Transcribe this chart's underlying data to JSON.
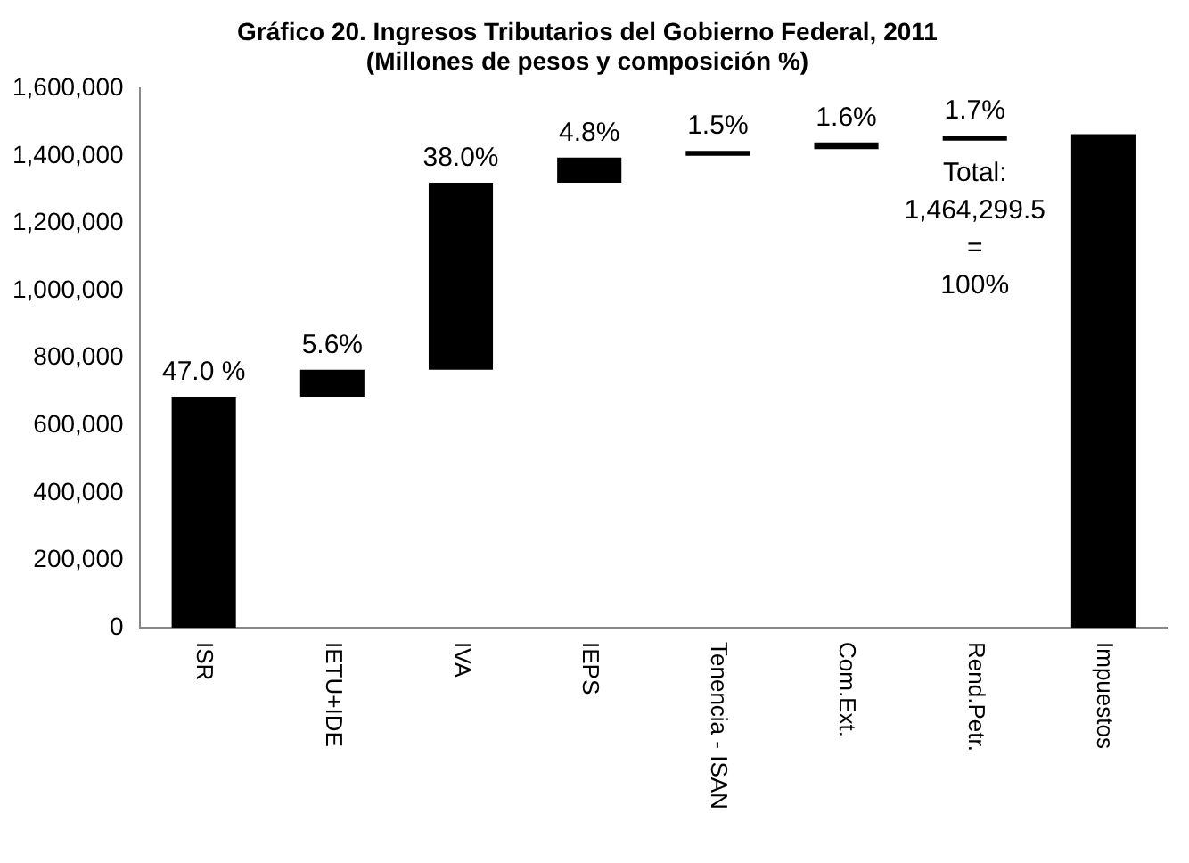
{
  "chart_data": {
    "type": "bar",
    "title": "Gráfico 20. Ingresos Tributarios del Gobierno Federal, 2011\n(Millones de pesos y composición %)",
    "categories": [
      "ISR",
      "IETU+IDE",
      "IVA",
      "IEPS",
      "Tenencia - ISAN",
      "Com.Ext.",
      "Rend.Petr.",
      "Impuestos"
    ],
    "base": [
      0,
      685000,
      765000,
      1320000,
      1400000,
      1420000,
      1445000,
      0
    ],
    "values": [
      685000,
      80000,
      555000,
      75000,
      15000,
      20000,
      15000,
      1464000
    ],
    "color": "#000000",
    "ylim": [
      0,
      1600000
    ],
    "yticks": [
      {
        "value": 0,
        "label": "0"
      },
      {
        "value": 200000,
        "label": "200,000"
      },
      {
        "value": 400000,
        "label": "400,000"
      },
      {
        "value": 600000,
        "label": "600,000"
      },
      {
        "value": 800000,
        "label": "800,000"
      },
      {
        "value": 1000000,
        "label": "1,000,000"
      },
      {
        "value": 1200000,
        "label": "1,200,000"
      },
      {
        "value": 1400000,
        "label": "1,400,000"
      },
      {
        "value": 1600000,
        "label": "1,600,000"
      }
    ],
    "grid": false,
    "legend": false,
    "annotations": [
      {
        "text": "47.0 %",
        "x": "ISR",
        "y": 685000
      },
      {
        "text": "5.6%",
        "x": "IETU+IDE",
        "y": 765000
      },
      {
        "text": "38.0%",
        "x": "IVA",
        "y": 1320000
      },
      {
        "text": "4.8%",
        "x": "IEPS",
        "y": 1395000
      },
      {
        "text": "1.5%",
        "x": "Tenencia - ISAN",
        "y": 1415000
      },
      {
        "text": "1.6%",
        "x": "Com.Ext.",
        "y": 1440000
      },
      {
        "text": "1.7%",
        "x": "Rend.Petr.",
        "y": 1460000
      },
      "Total:\n1,464,299.5\n=\n100%"
    ]
  }
}
